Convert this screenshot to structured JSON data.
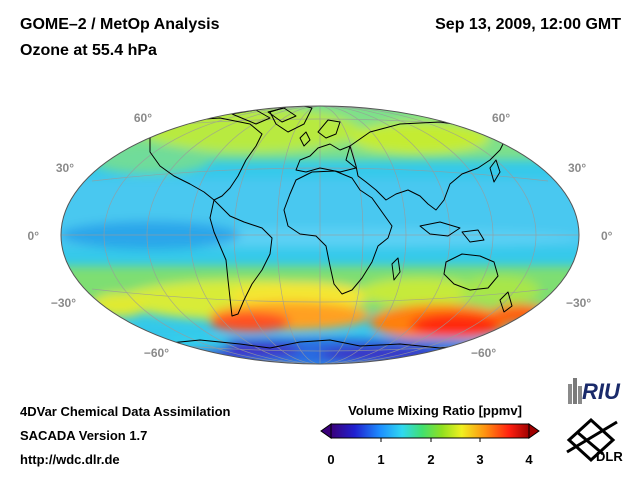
{
  "header": {
    "title_line1": "GOME–2 / MetOp Analysis",
    "title_line2": "Ozone at 55.4 hPa",
    "datetime": "Sep 13, 2009, 12:00 GMT"
  },
  "map": {
    "projection": "Hammer-Aitoff (global)",
    "latitude_labels": [
      "60°",
      "30°",
      "0°",
      "−30°",
      "−60°"
    ],
    "latitudes": [
      60,
      30,
      0,
      -30,
      -60
    ]
  },
  "colorbar": {
    "title": "Volume Mixing Ratio [ppmv]",
    "min": 0,
    "max": 4,
    "tick_labels": [
      "0",
      "1",
      "2",
      "3",
      "4"
    ],
    "colors": [
      "#3a007a",
      "#1a28d8",
      "#1e90ff",
      "#30d8f0",
      "#40e080",
      "#80e020",
      "#f0f020",
      "#ff9010",
      "#ff2010",
      "#b00000"
    ]
  },
  "footer": {
    "line1": "4DVar Chemical Data Assimilation",
    "line2": "SACADA Version 1.7",
    "line3": "http://wdc.dlr.de"
  },
  "logos": {
    "riu": "RIU",
    "dlr": "DLR"
  }
}
